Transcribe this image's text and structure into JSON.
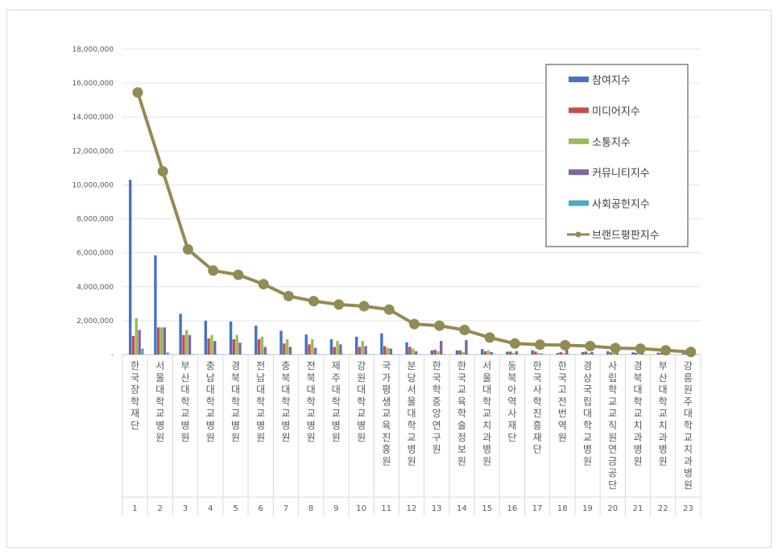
{
  "chart_data": {
    "type": "bar",
    "title": "",
    "xlabel": "",
    "ylabel": "",
    "ylim": [
      0,
      18000000
    ],
    "y_ticks": [
      "-",
      "2,000,000",
      "4,000,000",
      "6,000,000",
      "8,000,000",
      "10,000,000",
      "12,000,000",
      "14,000,000",
      "16,000,000",
      "18,000,000"
    ],
    "grid": true,
    "legend_position": "top-right",
    "categories": [
      "한국장학재단",
      "서울대학교병원",
      "부산대학교병원",
      "충남대학교병원",
      "경북대학교병원",
      "전남대학교병원",
      "충북대학교병원",
      "전북대학교병원",
      "제주대학교병원",
      "강원대학교병원",
      "국가평생교육진흥원",
      "분당서울대학교병원",
      "한국학중앙연구원",
      "한국교육학술정보원",
      "서울대학교치과병원",
      "동북아역사재단",
      "한국사학진흥재단",
      "한국고전번역원",
      "경상국립대학교병원",
      "사립학교교직원연금공단",
      "경북대학교치과병원",
      "부산대학교치과병원",
      "강릉원주대학교치과병원"
    ],
    "ranks": [
      "1",
      "2",
      "3",
      "4",
      "5",
      "6",
      "7",
      "8",
      "9",
      "10",
      "11",
      "12",
      "13",
      "14",
      "15",
      "16",
      "17",
      "18",
      "19",
      "20",
      "21",
      "22",
      "23"
    ],
    "series": [
      {
        "name": "참여지수",
        "color": "#4472c4",
        "kind": "bar",
        "values": [
          10300000,
          5850000,
          2400000,
          2000000,
          1950000,
          1700000,
          1400000,
          1180000,
          900000,
          1050000,
          1250000,
          720000,
          250000,
          250000,
          320000,
          170000,
          250000,
          90000,
          150000,
          200000,
          130000,
          110000,
          80000
        ]
      },
      {
        "name": "미디어지수",
        "color": "#c0504d",
        "kind": "bar",
        "values": [
          1100000,
          1600000,
          1150000,
          950000,
          900000,
          900000,
          650000,
          600000,
          450000,
          450000,
          500000,
          450000,
          280000,
          250000,
          200000,
          180000,
          180000,
          150000,
          180000,
          130000,
          100000,
          100000,
          90000
        ]
      },
      {
        "name": "소통지수",
        "color": "#9bbb59",
        "kind": "bar",
        "values": [
          2150000,
          1600000,
          1450000,
          1150000,
          1150000,
          1050000,
          900000,
          900000,
          800000,
          800000,
          400000,
          350000,
          200000,
          150000,
          250000,
          100000,
          100000,
          100000,
          100000,
          100000,
          80000,
          60000,
          50000
        ]
      },
      {
        "name": "커뮤니티지수",
        "color": "#8064a2",
        "kind": "bar",
        "values": [
          1450000,
          1600000,
          1150000,
          800000,
          700000,
          450000,
          450000,
          400000,
          600000,
          500000,
          350000,
          200000,
          800000,
          850000,
          150000,
          200000,
          50000,
          300000,
          150000,
          100000,
          100000,
          60000,
          50000
        ]
      },
      {
        "name": "사회공헌지수",
        "color": "#4bacc6",
        "kind": "bar",
        "values": [
          350000,
          130000,
          30000,
          20000,
          20000,
          20000,
          20000,
          20000,
          20000,
          20000,
          20000,
          20000,
          20000,
          20000,
          20000,
          10000,
          10000,
          10000,
          10000,
          10000,
          10000,
          10000,
          10000
        ]
      },
      {
        "name": "브랜드평판지수",
        "color": "#948a54",
        "kind": "line",
        "values": [
          15450000,
          10800000,
          6200000,
          4950000,
          4700000,
          4150000,
          3450000,
          3150000,
          2950000,
          2850000,
          2650000,
          1800000,
          1700000,
          1450000,
          1000000,
          650000,
          580000,
          550000,
          500000,
          380000,
          350000,
          250000,
          150000
        ]
      }
    ]
  }
}
